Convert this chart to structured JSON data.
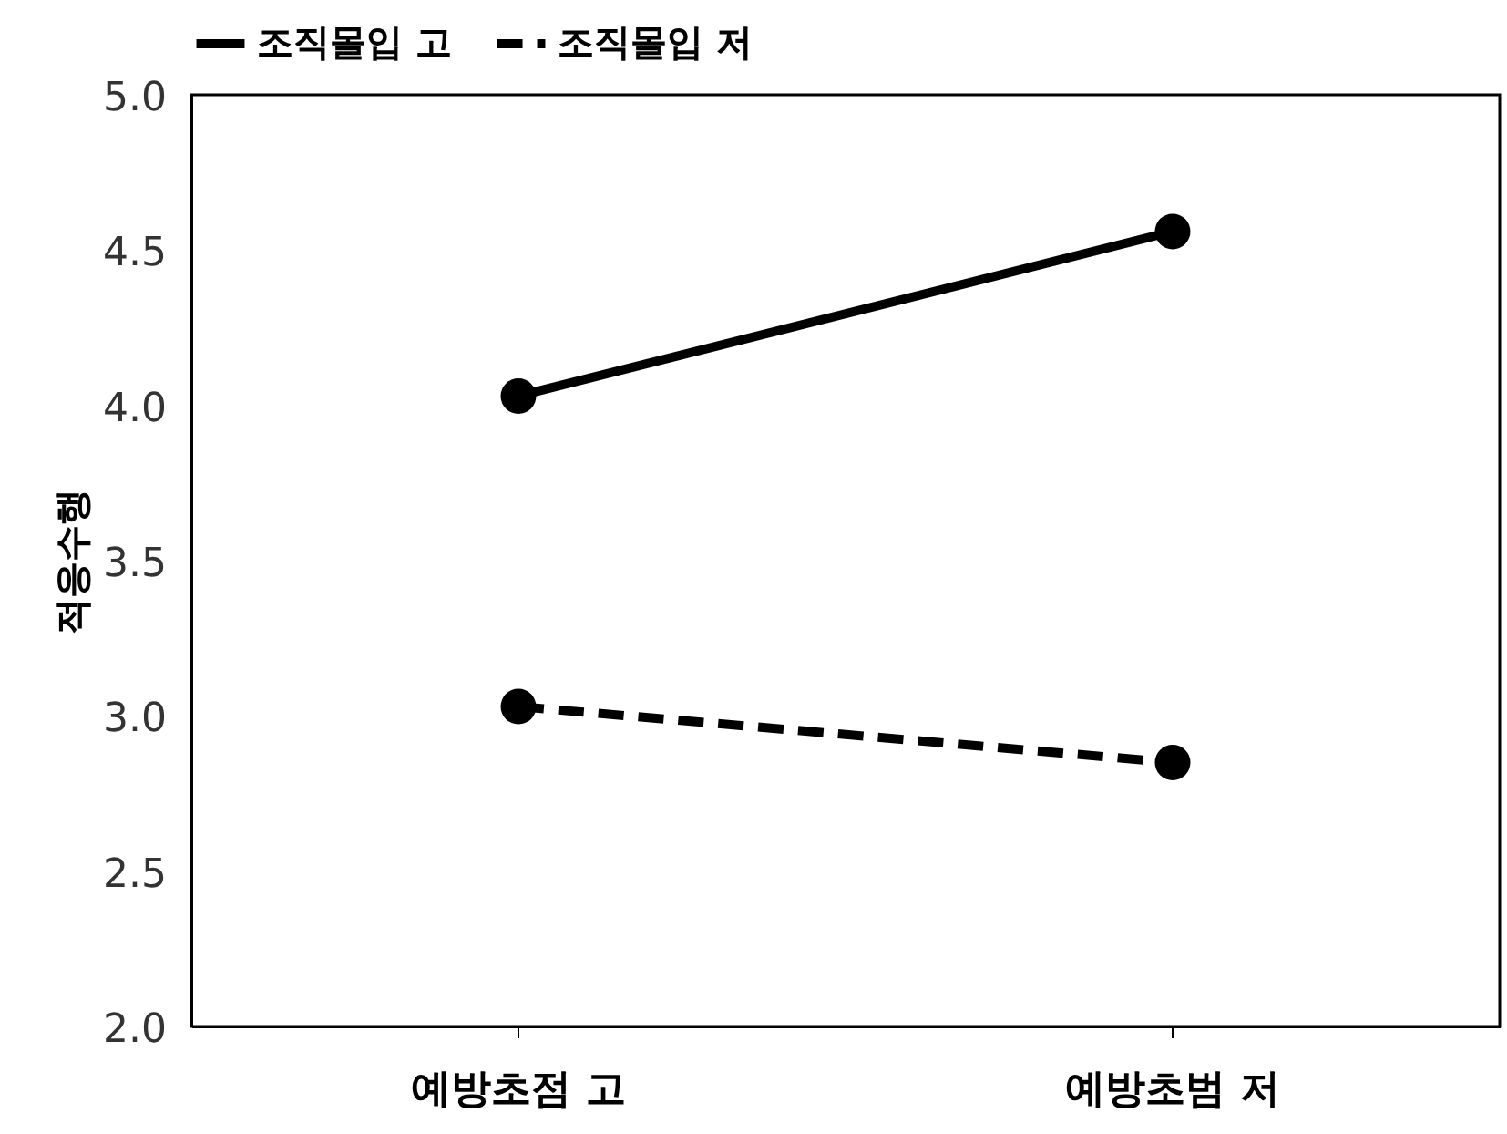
{
  "chart_data": {
    "type": "line",
    "ylabel": "적응수행",
    "categories": [
      "예방초점 고",
      "예방초범 저"
    ],
    "series": [
      {
        "name": "조직몰입 고",
        "color": "#000000",
        "line_style": "solid",
        "values": [
          4.03,
          4.56
        ]
      },
      {
        "name": "조직몰입 저",
        "color": "#000000",
        "line_style": "dashed",
        "values": [
          3.03,
          2.85
        ]
      }
    ],
    "ylim": [
      2,
      5
    ],
    "yticks": [
      {
        "value": 2,
        "label": "2.0"
      },
      {
        "value": 2.5,
        "label": "2.5"
      },
      {
        "value": 3,
        "label": "3.0"
      },
      {
        "value": 3.5,
        "label": "3.5"
      },
      {
        "value": 4,
        "label": "4.0"
      },
      {
        "value": 4.5,
        "label": "4.5"
      },
      {
        "value": 5,
        "label": "5.0"
      }
    ],
    "grid": false,
    "legend": "top",
    "marker": "circle"
  }
}
